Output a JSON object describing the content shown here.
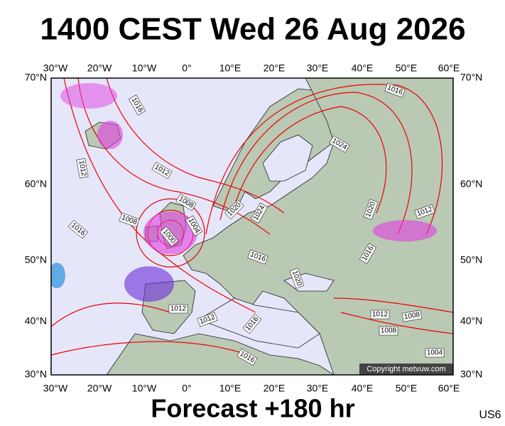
{
  "header": {
    "title": "1400 CEST Wed 26 Aug 2026"
  },
  "map": {
    "lon_labels": [
      "30°W",
      "20°W",
      "10°W",
      "0°",
      "10°E",
      "20°E",
      "30°E",
      "40°E",
      "50°E",
      "60°E"
    ],
    "lat_labels": [
      "70°N",
      "60°N",
      "50°N",
      "40°N",
      "30°N"
    ],
    "isobar_labels": [
      "1016",
      "1016",
      "1024",
      "1012",
      "1012",
      "1008",
      "1020",
      "1024",
      "1020",
      "1012",
      "1008",
      "1004",
      "1000",
      "1016",
      "1016",
      "1016",
      "1020",
      "1012",
      "1012",
      "1016",
      "1012",
      "1008",
      "1008",
      "1004",
      "1016"
    ],
    "copyright": "Copyright metvuw.com"
  },
  "footer": {
    "forecast": "Forecast +180 hr",
    "code": "US6"
  }
}
